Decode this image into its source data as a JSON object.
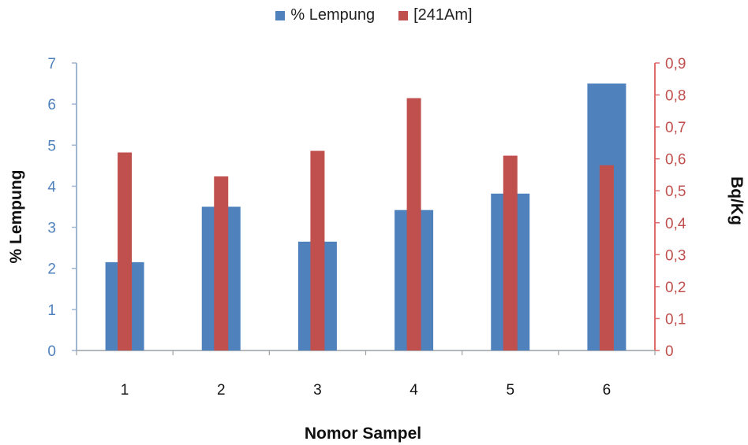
{
  "chart_data": {
    "type": "bar",
    "categories": [
      "1",
      "2",
      "3",
      "4",
      "5",
      "6"
    ],
    "series": [
      {
        "name": "% Lempung",
        "axis": "left",
        "color": "#4f81bd",
        "values": [
          2.15,
          3.5,
          2.65,
          3.42,
          3.82,
          6.5
        ]
      },
      {
        "name": "[241Am]",
        "axis": "right",
        "color": "#c0504d",
        "values": [
          0.62,
          0.545,
          0.625,
          0.79,
          0.61,
          0.58
        ]
      }
    ],
    "xlabel": "Nomor Sampel",
    "ylabel": "% Lempung",
    "ylabel_right": "Bq/Kg",
    "ylim": [
      0,
      7
    ],
    "ylim_right": [
      0,
      0.9
    ],
    "yticks": [
      "0",
      "1",
      "2",
      "3",
      "4",
      "5",
      "6",
      "7"
    ],
    "yticks_right": [
      "0",
      "0,1",
      "0,2",
      "0,3",
      "0,4",
      "0,5",
      "0,6",
      "0,7",
      "0,8",
      "0,9"
    ],
    "left_axis_color": "#4f81bd",
    "right_axis_color": "#c0504d",
    "legend_position": "top",
    "grid": false
  }
}
